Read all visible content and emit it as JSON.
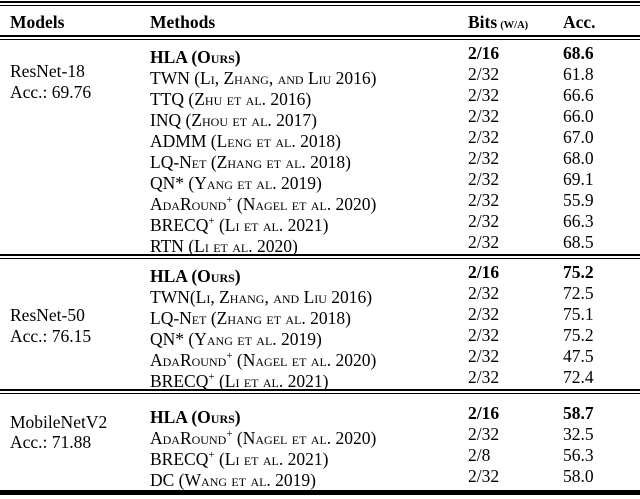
{
  "colors": {
    "background": "#ffffff",
    "text": "#000000",
    "rule": "#000000"
  },
  "header": {
    "models": "Models",
    "methods": "Methods",
    "bits": "Bits",
    "bits_unit": "(W/A)",
    "acc": "Acc."
  },
  "sections": [
    {
      "model": "ResNet-18",
      "model_acc": "Acc.: 69.76",
      "rows": [
        {
          "pre": "HLA (Ours)",
          "bits": "2/16",
          "acc": "68.6"
        },
        {
          "pre": "TWN (Li, Zhang, and Liu 2016)",
          "bits": "2/32",
          "acc": "61.8"
        },
        {
          "pre": "TTQ (Zhu et al. 2016)",
          "bits": "2/32",
          "acc": "66.6"
        },
        {
          "pre": "INQ (Zhou et al. 2017)",
          "bits": "2/32",
          "acc": "66.0"
        },
        {
          "pre": "ADMM (Leng et al. 2018)",
          "bits": "2/32",
          "acc": "67.0"
        },
        {
          "pre": "LQ-Net (Zhang et al. 2018)",
          "bits": "2/32",
          "acc": "68.0"
        },
        {
          "pre": "QN* (Yang et al. 2019)",
          "bits": "2/32",
          "acc": "69.1"
        },
        {
          "pre": "AdaRound",
          "sup": "+",
          "post": " (Nagel et al. 2020)",
          "bits": "2/32",
          "acc": "55.9"
        },
        {
          "pre": "BRECQ",
          "sup": "+",
          "post": " (Li et al. 2021)",
          "bits": "2/32",
          "acc": "66.3"
        },
        {
          "pre": "RTN (Li et al. 2020)",
          "bits": "2/32",
          "acc": "68.5"
        }
      ]
    },
    {
      "model": "ResNet-50",
      "model_acc": "Acc.: 76.15",
      "rows": [
        {
          "pre": "HLA (Ours)",
          "bits": "2/16",
          "acc": "75.2"
        },
        {
          "pre": "TWN(Li, Zhang, and Liu 2016)",
          "bits": "2/32",
          "acc": "72.5"
        },
        {
          "pre": "LQ-Net (Zhang et al. 2018)",
          "bits": "2/32",
          "acc": "75.1"
        },
        {
          "pre": "QN* (Yang et al. 2019)",
          "bits": "2/32",
          "acc": "75.2"
        },
        {
          "pre": "AdaRound",
          "sup": "+",
          "post": " (Nagel et al. 2020)",
          "bits": "2/32",
          "acc": "47.5"
        },
        {
          "pre": "BRECQ",
          "sup": "+",
          "post": " (Li et al. 2021)",
          "bits": "2/32",
          "acc": "72.4"
        }
      ]
    },
    {
      "model": "MobileNetV2",
      "model_acc": "Acc.: 71.88",
      "rows": [
        {
          "pre": "HLA (Ours)",
          "bits": "2/16",
          "acc": "58.7"
        },
        {
          "pre": "AdaRound",
          "sup": "+",
          "post": " (Nagel et al. 2020)",
          "bits": "2/32",
          "acc": "32.5"
        },
        {
          "pre": "BRECQ",
          "sup": "+",
          "post": " (Li et al. 2021)",
          "bits": "2/8",
          "acc": "56.3"
        },
        {
          "pre": "DC (Wang et al. 2019)",
          "bits": "2/32",
          "acc": "58.0"
        }
      ]
    }
  ]
}
